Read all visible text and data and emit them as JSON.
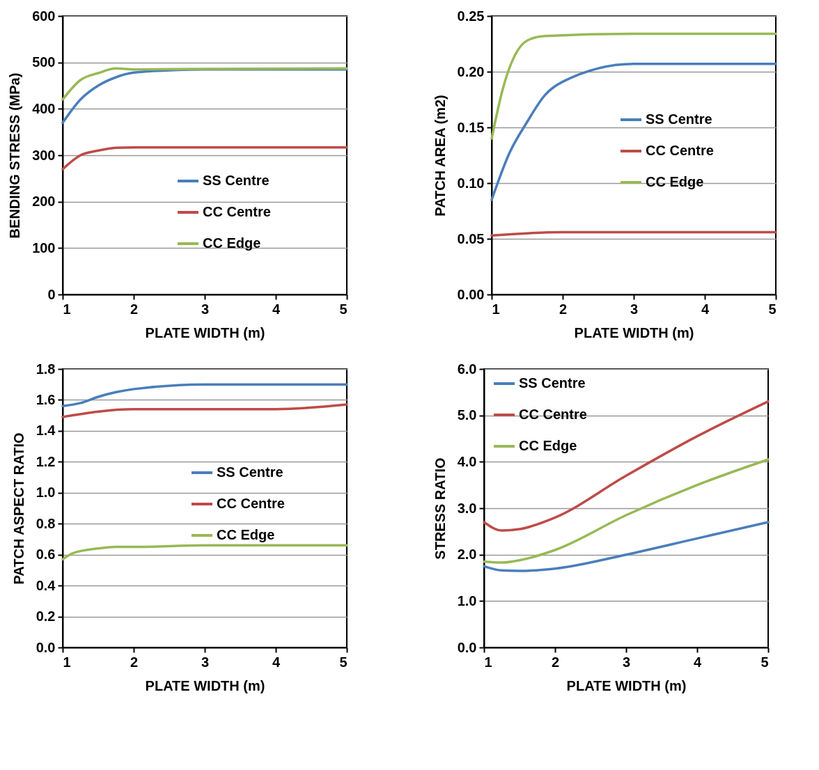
{
  "chart_data": [
    {
      "type": "line",
      "xlabel": "PLATE WIDTH (m)",
      "ylabel": "BENDING STRESS (MPa)",
      "xlim": [
        1,
        5
      ],
      "xticks": [
        1,
        2,
        3,
        4,
        5
      ],
      "ylim": [
        0,
        600
      ],
      "yticks": [
        0,
        100,
        200,
        300,
        400,
        500,
        600
      ],
      "grid": "y",
      "legend": "bottom right",
      "series": [
        {
          "name": "SS Centre",
          "color": "#4a7ebb",
          "x": [
            1,
            1.25,
            1.5,
            1.75,
            2,
            2.5,
            3,
            5
          ],
          "values": [
            370,
            420,
            450,
            468,
            478,
            483,
            485,
            485
          ]
        },
        {
          "name": "CC Centre",
          "color": "#be4b48",
          "x": [
            1,
            1.25,
            1.5,
            1.75,
            2,
            5
          ],
          "values": [
            270,
            300,
            310,
            316,
            317,
            317
          ]
        },
        {
          "name": "CC Edge",
          "color": "#98b954",
          "x": [
            1,
            1.25,
            1.5,
            1.75,
            2,
            3,
            5
          ],
          "values": [
            420,
            462,
            477,
            487,
            485,
            486,
            487
          ]
        }
      ]
    },
    {
      "type": "line",
      "xlabel": "PLATE WIDTH (m)",
      "ylabel": "PATCH AREA (m2)",
      "xlim": [
        1,
        5
      ],
      "xticks": [
        1,
        2,
        3,
        4,
        5
      ],
      "ylim": [
        0,
        0.25
      ],
      "yticks": [
        {
          "value": 0,
          "label": "0.00"
        },
        {
          "value": 0.05,
          "label": "0.05"
        },
        {
          "value": 0.1,
          "label": "0.10"
        },
        {
          "value": 0.15,
          "label": "0.15"
        },
        {
          "value": 0.2,
          "label": "0.20"
        },
        {
          "value": 0.25,
          "label": "0.25"
        }
      ],
      "grid": "y",
      "legend": "right",
      "series": [
        {
          "name": "SS Centre",
          "color": "#4a7ebb",
          "x": [
            1,
            1.25,
            1.5,
            1.75,
            2,
            3,
            5
          ],
          "values": [
            0.085,
            0.127,
            0.155,
            0.179,
            0.191,
            0.207,
            0.207
          ]
        },
        {
          "name": "CC Centre",
          "color": "#be4b48",
          "x": [
            1,
            2,
            5
          ],
          "values": [
            0.053,
            0.056,
            0.056
          ]
        },
        {
          "name": "CC Edge",
          "color": "#98b954",
          "x": [
            1,
            1.15,
            1.5,
            1.75,
            3,
            5
          ],
          "values": [
            0.14,
            0.183,
            0.228,
            0.232,
            0.234,
            0.234
          ]
        }
      ]
    },
    {
      "type": "line",
      "xlabel": "PLATE WIDTH (m)",
      "ylabel": "PATCH ASPECT RATIO",
      "xlim": [
        1,
        5
      ],
      "xticks": [
        1,
        2,
        3,
        4,
        5
      ],
      "ylim": [
        0,
        1.8
      ],
      "yticks": [
        {
          "value": 0,
          "label": "0.0"
        },
        0.2,
        0.4,
        0.6,
        0.8,
        {
          "value": 1,
          "label": "1.0"
        },
        1.2,
        1.4,
        1.6,
        1.8
      ],
      "grid": "y",
      "legend": "right",
      "series": [
        {
          "name": "SS Centre",
          "color": "#4a7ebb",
          "x": [
            1,
            1.25,
            1.5,
            1.75,
            2,
            3,
            4,
            5
          ],
          "values": [
            1.56,
            1.58,
            1.62,
            1.65,
            1.67,
            1.7,
            1.7,
            1.7
          ]
        },
        {
          "name": "CC Centre",
          "color": "#be4b48",
          "x": [
            1,
            2,
            4,
            5
          ],
          "values": [
            1.49,
            1.54,
            1.54,
            1.57
          ]
        },
        {
          "name": "CC Edge",
          "color": "#98b954",
          "x": [
            1,
            1.15,
            1.5,
            1.75,
            2,
            3,
            5
          ],
          "values": [
            0.57,
            0.61,
            0.64,
            0.65,
            0.65,
            0.66,
            0.66
          ]
        }
      ]
    },
    {
      "type": "line",
      "xlabel": "PLATE WIDTH (m)",
      "ylabel": "STRESS RATIO",
      "xlim": [
        1,
        5
      ],
      "xticks": [
        1,
        2,
        3,
        4,
        5
      ],
      "ylim": [
        0,
        6
      ],
      "yticks": [
        {
          "value": 0,
          "label": "0.0"
        },
        {
          "value": 1,
          "label": "1.0"
        },
        {
          "value": 2,
          "label": "2.0"
        },
        {
          "value": 3,
          "label": "3.0"
        },
        {
          "value": 4,
          "label": "4.0"
        },
        {
          "value": 5,
          "label": "5.0"
        },
        {
          "value": 6,
          "label": "6.0"
        }
      ],
      "grid": "y",
      "legend": "top left",
      "series": [
        {
          "name": "SS Centre",
          "color": "#4a7ebb",
          "x": [
            1,
            1.25,
            1.5,
            2,
            3,
            4,
            5
          ],
          "values": [
            1.75,
            1.66,
            1.65,
            1.7,
            2.0,
            2.35,
            2.7
          ]
        },
        {
          "name": "CC Centre",
          "color": "#be4b48",
          "x": [
            1,
            1.25,
            1.5,
            2,
            3,
            4,
            5
          ],
          "values": [
            2.7,
            2.52,
            2.55,
            2.8,
            3.7,
            4.55,
            5.3
          ]
        },
        {
          "name": "CC Edge",
          "color": "#98b954",
          "x": [
            1,
            1.25,
            1.5,
            2,
            3,
            4,
            5
          ],
          "values": [
            1.85,
            1.83,
            1.88,
            2.1,
            2.85,
            3.5,
            4.05
          ]
        }
      ]
    }
  ]
}
